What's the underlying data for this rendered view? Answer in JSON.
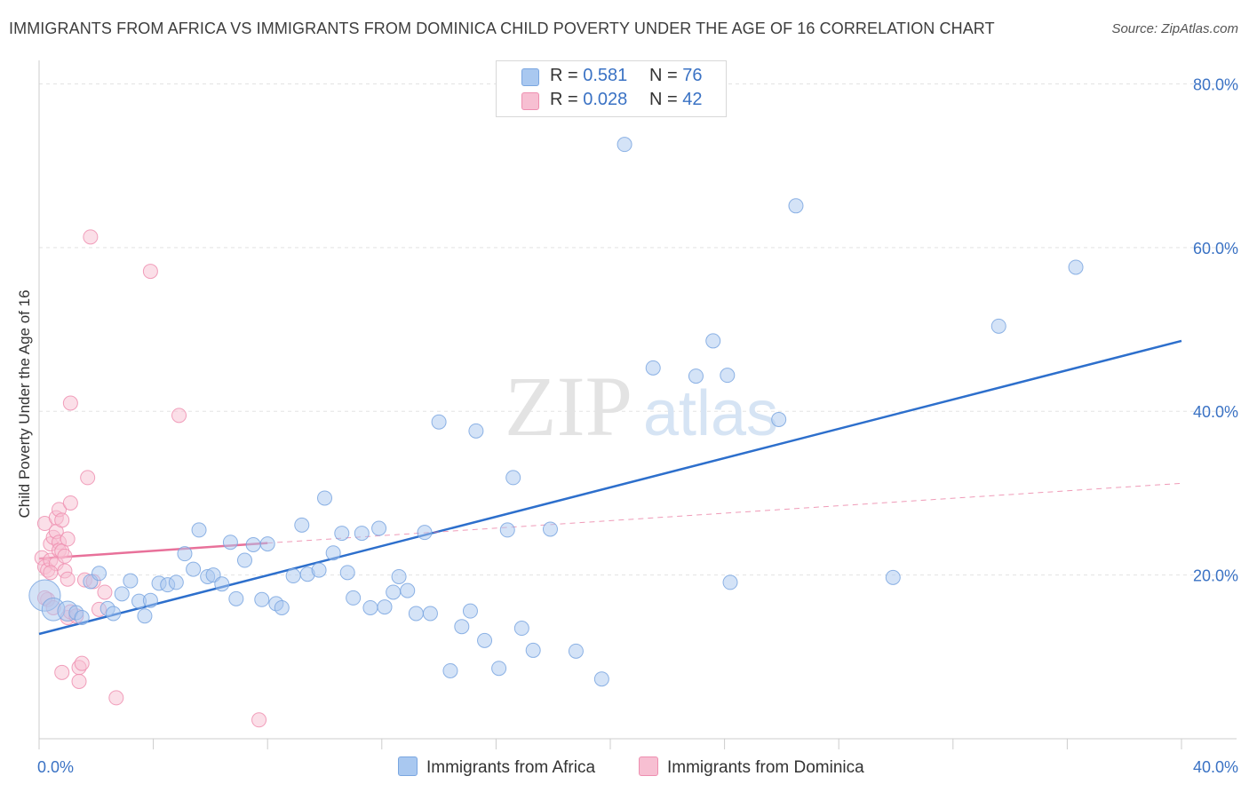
{
  "title": "IMMIGRANTS FROM AFRICA VS IMMIGRANTS FROM DOMINICA CHILD POVERTY UNDER THE AGE OF 16 CORRELATION CHART",
  "source": "Source: ZipAtlas.com",
  "watermark": {
    "zip": "ZIP",
    "atlas": "atlas"
  },
  "legend": {
    "africa": {
      "r_label": "R =",
      "r_value": "0.581",
      "n_label": "N =",
      "n_value": "76"
    },
    "dominica": {
      "r_label": "R =",
      "r_value": "0.028",
      "n_label": "N =",
      "n_value": "42"
    }
  },
  "colors": {
    "africa_fill": "#a9c8f0",
    "africa_stroke": "#7aa6e0",
    "africa_line": "#2d6fcc",
    "dominica_fill": "#f7bfd2",
    "dominica_stroke": "#ee8fb0",
    "dominica_line": "#e8719a",
    "grid": "#e3e3e3",
    "tick_text": "#3a72c4"
  },
  "chart_data": {
    "type": "scatter",
    "title": "IMMIGRANTS FROM AFRICA VS IMMIGRANTS FROM DOMINICA CHILD POVERTY UNDER THE AGE OF 16 CORRELATION CHART",
    "xlabel": "",
    "ylabel": "Child Poverty Under the Age of 16",
    "xlim": [
      0,
      40
    ],
    "ylim": [
      0,
      82
    ],
    "x_tick_labels": [
      "0.0%",
      "40.0%"
    ],
    "y_ticks": [
      20,
      40,
      60,
      80
    ],
    "y_tick_labels": [
      "20.0%",
      "40.0%",
      "60.0%",
      "80.0%"
    ],
    "grid": true,
    "legend_position": "top-center",
    "series": [
      {
        "name": "Immigrants from Africa",
        "r": 0.581,
        "n": 76,
        "trend": {
          "x": [
            0,
            40
          ],
          "y": [
            12.8,
            48.6
          ],
          "style": "solid"
        },
        "points": [
          {
            "x": 0.2,
            "y": 17.5,
            "s": 2.2
          },
          {
            "x": 0.5,
            "y": 15.8,
            "s": 1.6
          },
          {
            "x": 1.0,
            "y": 15.6,
            "s": 1.4
          },
          {
            "x": 1.3,
            "y": 15.4
          },
          {
            "x": 1.5,
            "y": 14.8
          },
          {
            "x": 1.8,
            "y": 19.2
          },
          {
            "x": 2.1,
            "y": 20.2
          },
          {
            "x": 2.4,
            "y": 15.9
          },
          {
            "x": 2.6,
            "y": 15.3
          },
          {
            "x": 2.9,
            "y": 17.7
          },
          {
            "x": 3.2,
            "y": 19.3
          },
          {
            "x": 3.5,
            "y": 16.8
          },
          {
            "x": 3.7,
            "y": 15.0
          },
          {
            "x": 3.9,
            "y": 16.9
          },
          {
            "x": 4.2,
            "y": 19.0
          },
          {
            "x": 4.5,
            "y": 18.8
          },
          {
            "x": 4.8,
            "y": 19.1
          },
          {
            "x": 5.1,
            "y": 22.6
          },
          {
            "x": 5.4,
            "y": 20.7
          },
          {
            "x": 5.6,
            "y": 25.5
          },
          {
            "x": 5.9,
            "y": 19.8
          },
          {
            "x": 6.1,
            "y": 20.0
          },
          {
            "x": 6.4,
            "y": 18.9
          },
          {
            "x": 6.7,
            "y": 24.0
          },
          {
            "x": 6.9,
            "y": 17.1
          },
          {
            "x": 7.2,
            "y": 21.8
          },
          {
            "x": 7.5,
            "y": 23.7
          },
          {
            "x": 7.8,
            "y": 17.0
          },
          {
            "x": 8.0,
            "y": 23.8
          },
          {
            "x": 8.3,
            "y": 16.5
          },
          {
            "x": 8.5,
            "y": 16.0
          },
          {
            "x": 8.9,
            "y": 19.9
          },
          {
            "x": 9.2,
            "y": 26.1
          },
          {
            "x": 9.4,
            "y": 20.1
          },
          {
            "x": 9.8,
            "y": 20.6
          },
          {
            "x": 10.0,
            "y": 29.4
          },
          {
            "x": 10.3,
            "y": 22.7
          },
          {
            "x": 10.6,
            "y": 25.1
          },
          {
            "x": 10.8,
            "y": 20.3
          },
          {
            "x": 11.0,
            "y": 17.2
          },
          {
            "x": 11.3,
            "y": 25.1
          },
          {
            "x": 11.6,
            "y": 16.0
          },
          {
            "x": 11.9,
            "y": 25.7
          },
          {
            "x": 12.1,
            "y": 16.1
          },
          {
            "x": 12.4,
            "y": 17.9
          },
          {
            "x": 12.6,
            "y": 19.8
          },
          {
            "x": 12.9,
            "y": 18.1
          },
          {
            "x": 13.2,
            "y": 15.3
          },
          {
            "x": 13.5,
            "y": 25.2
          },
          {
            "x": 13.7,
            "y": 15.3
          },
          {
            "x": 14.0,
            "y": 38.7
          },
          {
            "x": 14.4,
            "y": 8.3
          },
          {
            "x": 14.8,
            "y": 13.7
          },
          {
            "x": 15.1,
            "y": 15.6
          },
          {
            "x": 15.3,
            "y": 37.6
          },
          {
            "x": 15.6,
            "y": 12.0
          },
          {
            "x": 16.1,
            "y": 8.6
          },
          {
            "x": 16.4,
            "y": 25.5
          },
          {
            "x": 16.6,
            "y": 31.9
          },
          {
            "x": 16.9,
            "y": 13.5
          },
          {
            "x": 17.3,
            "y": 10.8
          },
          {
            "x": 17.9,
            "y": 25.6
          },
          {
            "x": 18.8,
            "y": 10.7
          },
          {
            "x": 19.7,
            "y": 7.3
          },
          {
            "x": 20.5,
            "y": 72.6
          },
          {
            "x": 21.5,
            "y": 45.3
          },
          {
            "x": 23.0,
            "y": 44.3
          },
          {
            "x": 23.6,
            "y": 48.6
          },
          {
            "x": 24.1,
            "y": 44.4
          },
          {
            "x": 24.2,
            "y": 19.1
          },
          {
            "x": 25.9,
            "y": 39.0
          },
          {
            "x": 26.5,
            "y": 65.1
          },
          {
            "x": 29.9,
            "y": 19.7
          },
          {
            "x": 33.6,
            "y": 50.4
          },
          {
            "x": 36.3,
            "y": 57.6
          }
        ]
      },
      {
        "name": "Immigrants from Dominica",
        "r": 0.028,
        "n": 42,
        "trend": {
          "x": [
            0,
            8.0
          ],
          "y": [
            22.0,
            23.9
          ],
          "style": "solid",
          "dashed_to": {
            "x": 40,
            "y": 31.2
          }
        },
        "points": [
          {
            "x": 0.1,
            "y": 22.1
          },
          {
            "x": 0.2,
            "y": 21.0
          },
          {
            "x": 0.2,
            "y": 26.3
          },
          {
            "x": 0.3,
            "y": 20.6
          },
          {
            "x": 0.3,
            "y": 17.0
          },
          {
            "x": 0.4,
            "y": 21.8
          },
          {
            "x": 0.4,
            "y": 23.8
          },
          {
            "x": 0.5,
            "y": 24.6
          },
          {
            "x": 0.5,
            "y": 16.0
          },
          {
            "x": 0.6,
            "y": 27.0
          },
          {
            "x": 0.6,
            "y": 25.3
          },
          {
            "x": 0.6,
            "y": 21.4
          },
          {
            "x": 0.7,
            "y": 28.0
          },
          {
            "x": 0.7,
            "y": 24.0
          },
          {
            "x": 0.7,
            "y": 23.0
          },
          {
            "x": 0.8,
            "y": 26.7
          },
          {
            "x": 0.8,
            "y": 22.9
          },
          {
            "x": 0.8,
            "y": 8.1
          },
          {
            "x": 0.9,
            "y": 22.3
          },
          {
            "x": 0.9,
            "y": 20.5
          },
          {
            "x": 1.0,
            "y": 24.4
          },
          {
            "x": 1.0,
            "y": 19.5
          },
          {
            "x": 1.0,
            "y": 14.8
          },
          {
            "x": 1.1,
            "y": 15.5
          },
          {
            "x": 1.1,
            "y": 41.0
          },
          {
            "x": 1.1,
            "y": 28.8
          },
          {
            "x": 1.3,
            "y": 15.0
          },
          {
            "x": 1.4,
            "y": 8.7
          },
          {
            "x": 1.4,
            "y": 7.0
          },
          {
            "x": 1.5,
            "y": 9.2
          },
          {
            "x": 1.6,
            "y": 19.4
          },
          {
            "x": 1.7,
            "y": 31.9
          },
          {
            "x": 1.8,
            "y": 61.3
          },
          {
            "x": 1.9,
            "y": 19.2
          },
          {
            "x": 2.1,
            "y": 15.8
          },
          {
            "x": 2.3,
            "y": 17.9
          },
          {
            "x": 2.7,
            "y": 5.0
          },
          {
            "x": 3.9,
            "y": 57.1
          },
          {
            "x": 4.9,
            "y": 39.5
          },
          {
            "x": 7.7,
            "y": 2.3
          },
          {
            "x": 0.4,
            "y": 20.3
          },
          {
            "x": 0.2,
            "y": 17.2
          }
        ]
      }
    ]
  }
}
